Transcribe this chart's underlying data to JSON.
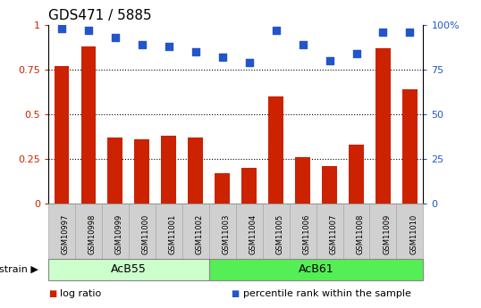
{
  "title": "GDS471 / 5885",
  "samples": [
    "GSM10997",
    "GSM10998",
    "GSM10999",
    "GSM11000",
    "GSM11001",
    "GSM11002",
    "GSM11003",
    "GSM11004",
    "GSM11005",
    "GSM11006",
    "GSM11007",
    "GSM11008",
    "GSM11009",
    "GSM11010"
  ],
  "log_ratio": [
    0.77,
    0.88,
    0.37,
    0.36,
    0.38,
    0.37,
    0.17,
    0.2,
    0.6,
    0.26,
    0.21,
    0.33,
    0.87,
    0.64
  ],
  "percentile_rank": [
    98,
    97,
    93,
    89,
    88,
    85,
    82,
    79,
    97,
    89,
    80,
    84,
    96,
    96
  ],
  "bar_color": "#cc2200",
  "dot_color": "#2255cc",
  "groups": [
    {
      "label": "AcB55",
      "start": 0,
      "end": 5,
      "color": "#ccffcc"
    },
    {
      "label": "AcB61",
      "start": 6,
      "end": 13,
      "color": "#55ee55"
    }
  ],
  "ylim_left": [
    0,
    1.0
  ],
  "ylim_right": [
    0,
    100
  ],
  "yticks_left": [
    0,
    0.25,
    0.5,
    0.75,
    1.0
  ],
  "yticks_right": [
    0,
    25,
    50,
    75,
    100
  ],
  "ytick_labels_left": [
    "0",
    "0.25",
    "0.5",
    "0.75",
    "1"
  ],
  "ytick_labels_right": [
    "0",
    "25",
    "50",
    "75",
    "100%"
  ],
  "hlines": [
    0.25,
    0.5,
    0.75
  ],
  "strain_label": "strain",
  "legend_items": [
    {
      "color": "#cc2200",
      "label": "log ratio"
    },
    {
      "color": "#2255cc",
      "label": "percentile rank within the sample"
    }
  ],
  "bar_width": 0.55,
  "dot_size": 35,
  "sample_box_color": "#d0d0d0",
  "sample_box_edge": "#aaaaaa",
  "title_fontsize": 11,
  "tick_fontsize": 8,
  "sample_fontsize": 6,
  "group_fontsize": 9,
  "legend_fontsize": 8
}
